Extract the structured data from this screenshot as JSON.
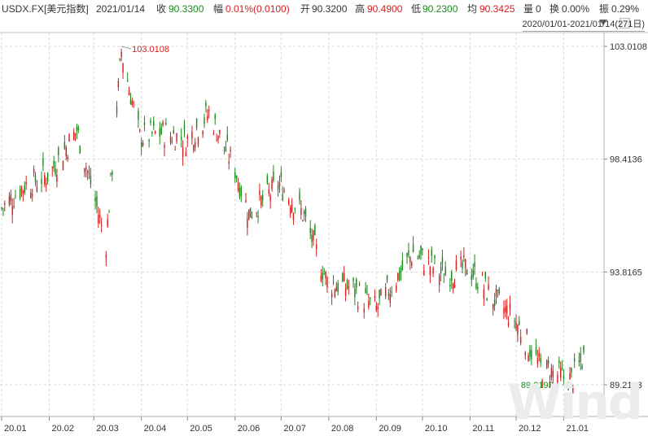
{
  "header": {
    "symbol": "USDX.FX[美元指数]",
    "date": "2021/01/14",
    "close_label": "收",
    "close": "90.3300",
    "change_label": "幅",
    "change": "0.01%(0.0100)",
    "open_label": "开",
    "open": "90.3200",
    "high_label": "高",
    "high": "90.4900",
    "low_label": "低",
    "low": "90.2300",
    "avg_label": "均",
    "avg": "90.3425",
    "volume_label": "量",
    "volume": "0",
    "turnover_label": "换",
    "turnover": "0.00%",
    "amplitude_label": "振",
    "amplitude": "0.29%"
  },
  "range": {
    "label": "2020/01/01-2021/01/14(271日)"
  },
  "watermark": "Wind",
  "colors": {
    "up": "#d42020",
    "down": "#1b8a1b",
    "grid": "#d8d8d8"
  },
  "chart_data": {
    "type": "candlestick",
    "y_ticks": [
      "103.0108",
      "98.4136",
      "93.8165",
      "89.2193"
    ],
    "x_ticks": [
      "20.01",
      "20.02",
      "20.03",
      "20.04",
      "20.05",
      "20.06",
      "20.07",
      "20.08",
      "20.09",
      "20.10",
      "20.11",
      "20.12",
      "21.01"
    ],
    "ylim": [
      89.2193,
      103.0108
    ],
    "max_label": "103.0108",
    "min_label": "89.2193",
    "approx_close_path": [
      [
        "2020-01-01",
        96.4
      ],
      [
        "2020-01-15",
        97.3
      ],
      [
        "2020-02-01",
        97.8
      ],
      [
        "2020-02-19",
        99.6
      ],
      [
        "2020-03-09",
        95.0
      ],
      [
        "2020-03-19",
        102.8
      ],
      [
        "2020-03-31",
        99.3
      ],
      [
        "2020-04-15",
        99.5
      ],
      [
        "2020-05-01",
        99.2
      ],
      [
        "2020-05-15",
        100.3
      ],
      [
        "2020-06-01",
        98.0
      ],
      [
        "2020-06-10",
        96.2
      ],
      [
        "2020-06-30",
        97.4
      ],
      [
        "2020-07-15",
        96.2
      ],
      [
        "2020-07-31",
        93.4
      ],
      [
        "2020-08-15",
        93.2
      ],
      [
        "2020-09-01",
        92.3
      ],
      [
        "2020-09-25",
        94.6
      ],
      [
        "2020-10-15",
        93.7
      ],
      [
        "2020-10-31",
        94.0
      ],
      [
        "2020-11-15",
        92.8
      ],
      [
        "2020-11-30",
        91.9
      ],
      [
        "2020-12-17",
        89.9
      ],
      [
        "2021-01-06",
        89.4
      ],
      [
        "2021-01-14",
        90.33
      ]
    ]
  }
}
